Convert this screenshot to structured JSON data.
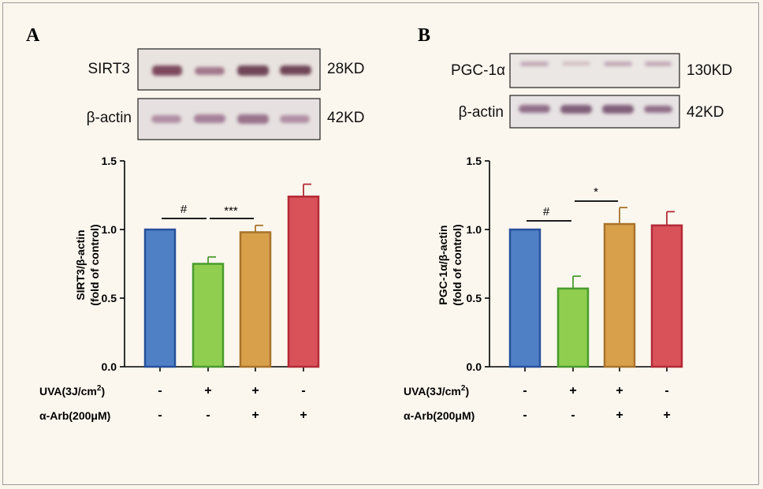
{
  "panels": [
    {
      "letter": "A",
      "blots": [
        {
          "protein": "SIRT3",
          "size": "28KD"
        },
        {
          "protein": "β-actin",
          "size": "42KD"
        }
      ],
      "y_ticks": [
        "1.5",
        "1.0",
        "0.5",
        "0.0"
      ],
      "ylabel_line1": "SIRT3/β-actin",
      "ylabel_line2": "(fold of control)",
      "sig_left": "#",
      "sig_right": "***",
      "uva_marks": [
        "-",
        "+",
        "+",
        "-"
      ],
      "arb_marks": [
        "-",
        "-",
        "+",
        "+"
      ]
    },
    {
      "letter": "B",
      "blots": [
        {
          "protein": "PGC-1α",
          "size": "130KD"
        },
        {
          "protein": "β-actin",
          "size": "42KD"
        }
      ],
      "y_ticks": [
        "1.5",
        "1.0",
        "0.5",
        "0.0"
      ],
      "ylabel_line1": "PGC-1α/β-actin",
      "ylabel_line2": "(fold of control)",
      "sig_left": "#",
      "sig_right": "*",
      "uva_marks": [
        "-",
        "+",
        "+",
        "-"
      ],
      "arb_marks": [
        "-",
        "-",
        "+",
        "+"
      ]
    }
  ],
  "treatments": {
    "uva_label": "UVA(3J/cm",
    "uva_sup": "2",
    "uva_close": ")",
    "arb_label": "α-Arb(200μM)"
  },
  "chart_data": [
    {
      "type": "bar",
      "ylabel": "SIRT3/β-actin (fold of control)",
      "ylim": [
        0,
        1.5
      ],
      "values": [
        1.0,
        0.75,
        0.98,
        1.24
      ],
      "errors": [
        0.0,
        0.05,
        0.05,
        0.09
      ],
      "colors": [
        "#4f7fc4",
        "#8fce4f",
        "#d9a04c",
        "#d9525a"
      ],
      "edge_colors": [
        "#27509c",
        "#4a9b2e",
        "#a8732a",
        "#b32a36"
      ],
      "significance": [
        {
          "from": 0,
          "to": 1,
          "label": "#"
        },
        {
          "from": 1,
          "to": 2,
          "label": "***"
        }
      ]
    },
    {
      "type": "bar",
      "ylabel": "PGC-1α/β-actin (fold of control)",
      "ylim": [
        0,
        1.5
      ],
      "values": [
        1.0,
        0.57,
        1.04,
        1.03
      ],
      "errors": [
        0.0,
        0.09,
        0.12,
        0.1
      ],
      "colors": [
        "#4f7fc4",
        "#8fce4f",
        "#d9a04c",
        "#d9525a"
      ],
      "edge_colors": [
        "#27509c",
        "#4a9b2e",
        "#a8732a",
        "#b32a36"
      ],
      "significance": [
        {
          "from": 0,
          "to": 1,
          "label": "#"
        },
        {
          "from": 1,
          "to": 2,
          "label": "*"
        }
      ]
    }
  ]
}
